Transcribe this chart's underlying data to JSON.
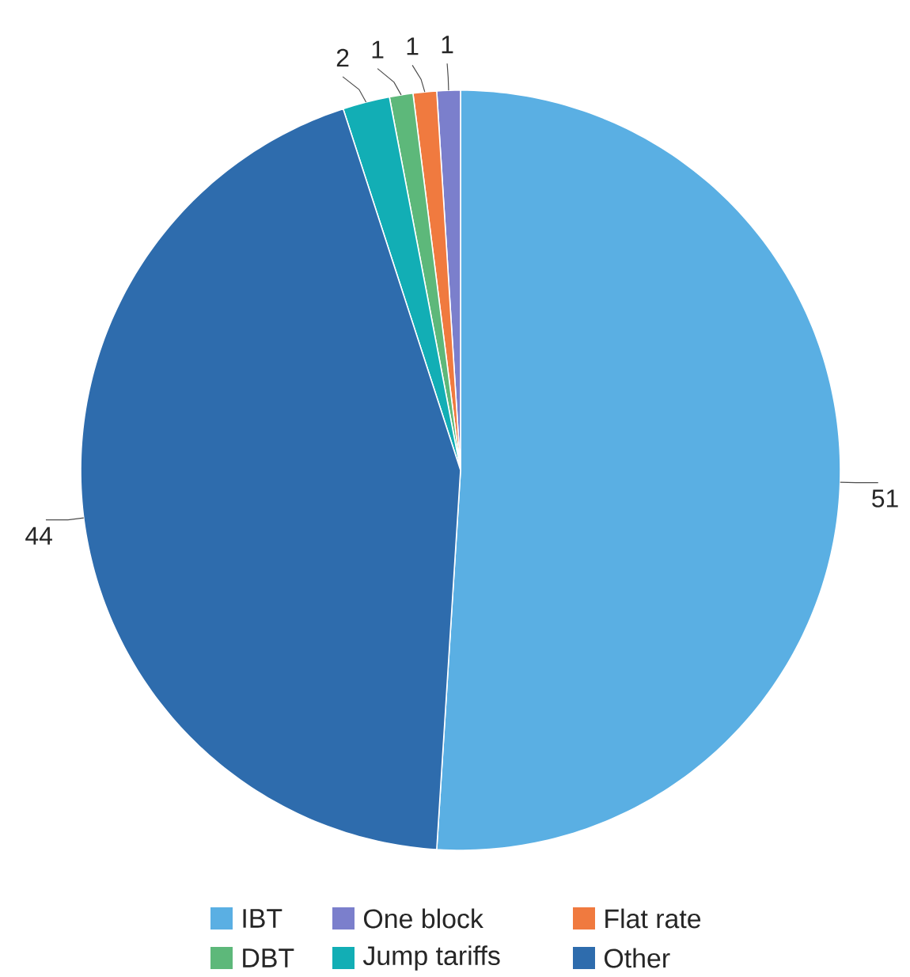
{
  "chart_data": {
    "type": "pie",
    "categories": [
      "IBT",
      "One block",
      "Flat rate",
      "DBT",
      "Jump tariffs",
      "Other"
    ],
    "values": [
      51,
      1,
      1,
      1,
      2,
      44
    ],
    "colors": [
      "#5aafe3",
      "#7b7fcc",
      "#f07a3f",
      "#5db87a",
      "#12aeb5",
      "#2e6cad"
    ],
    "data_labels": true,
    "legend": "bottom"
  }
}
